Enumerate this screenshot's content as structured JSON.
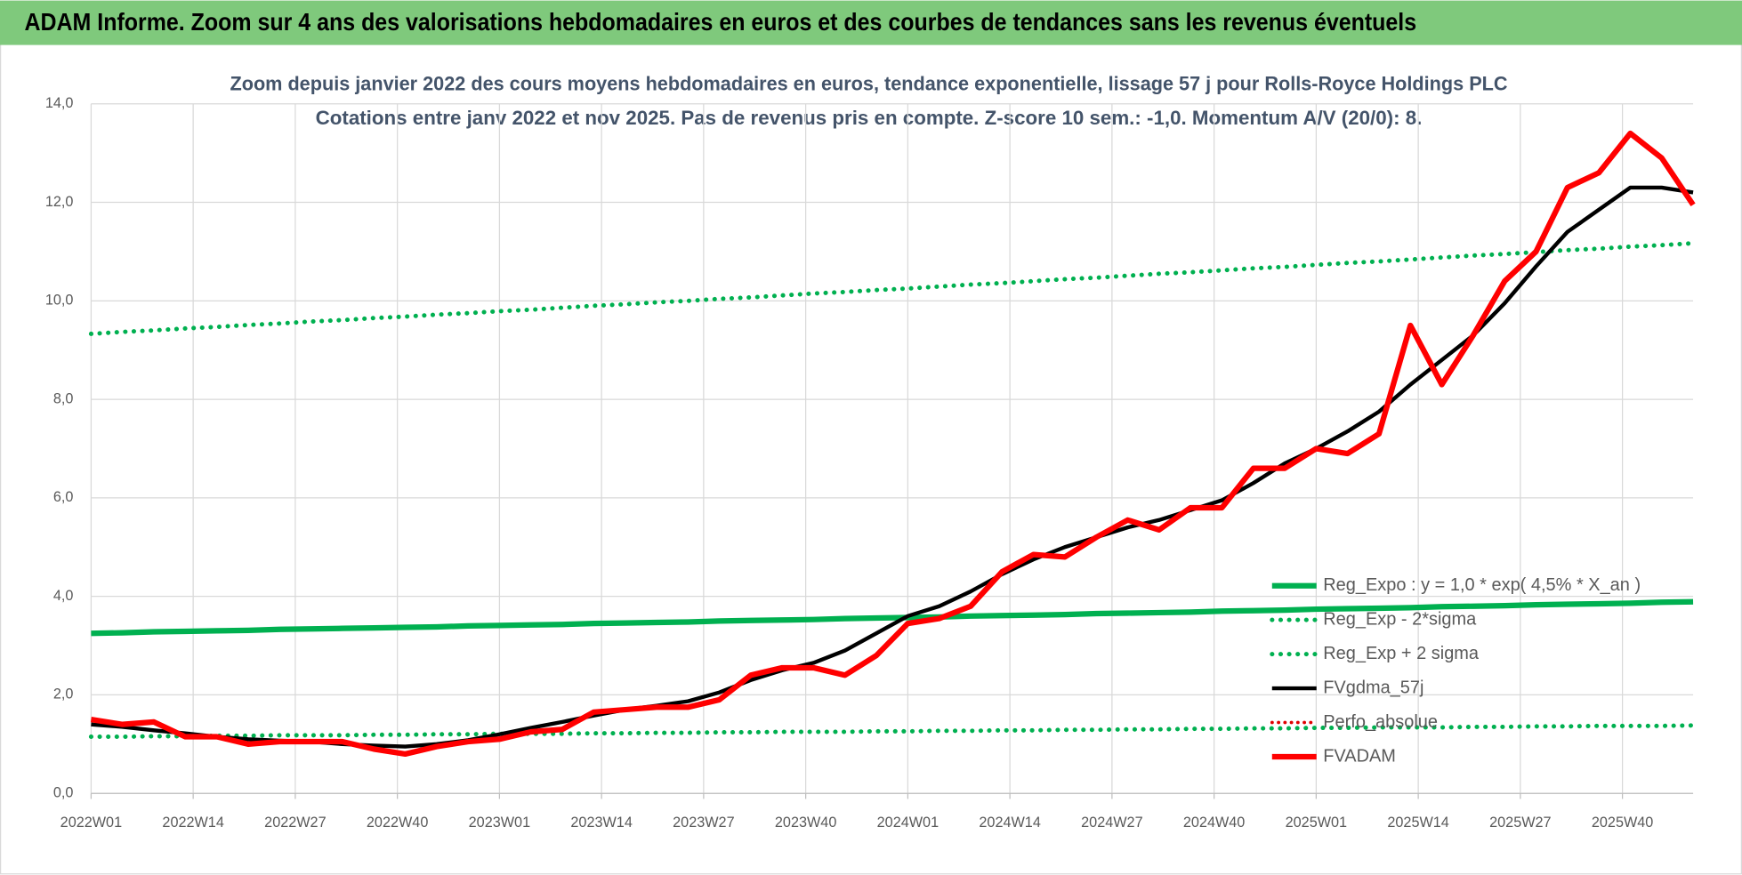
{
  "header": {
    "title": "ADAM Informe. Zoom sur 4 ans des valorisations hebdomadaires en euros et des courbes de tendances sans les revenus éventuels"
  },
  "chart_data": {
    "type": "line",
    "title": "Zoom depuis janvier 2022 des cours moyens hebdomadaires en euros, tendance exponentielle, lissage 57 j pour Rolls-Royce Holdings PLC",
    "subtitle": "Cotations entre janv 2022 et nov 2025. Pas de revenus pris en compte. Z-score 10 sem.: -1,0. Momentum A/V (20/0): 8.",
    "x": [
      0,
      4,
      8,
      12,
      16,
      20,
      24,
      28,
      32,
      36,
      40,
      44,
      48,
      52,
      56,
      60,
      64,
      68,
      72,
      76,
      80,
      84,
      88,
      92,
      96,
      100,
      104,
      108,
      112,
      116,
      120,
      124,
      128,
      132,
      136,
      140,
      144,
      148,
      152,
      156,
      160,
      164,
      168,
      172,
      176,
      180,
      184,
      188,
      192,
      196,
      200,
      204
    ],
    "xlim": [
      0,
      204
    ],
    "xticks": [
      {
        "value": 0,
        "label": "2022W01"
      },
      {
        "value": 13,
        "label": "2022W14"
      },
      {
        "value": 26,
        "label": "2022W27"
      },
      {
        "value": 39,
        "label": "2022W40"
      },
      {
        "value": 52,
        "label": "2023W01"
      },
      {
        "value": 65,
        "label": "2023W14"
      },
      {
        "value": 78,
        "label": "2023W27"
      },
      {
        "value": 91,
        "label": "2023W40"
      },
      {
        "value": 104,
        "label": "2024W01"
      },
      {
        "value": 117,
        "label": "2024W14"
      },
      {
        "value": 130,
        "label": "2024W27"
      },
      {
        "value": 143,
        "label": "2024W40"
      },
      {
        "value": 156,
        "label": "2025W01"
      },
      {
        "value": 169,
        "label": "2025W14"
      },
      {
        "value": 182,
        "label": "2025W27"
      },
      {
        "value": 195,
        "label": "2025W40"
      }
    ],
    "ylim": [
      0,
      14
    ],
    "yticks": [
      {
        "value": 0,
        "label": "0,0"
      },
      {
        "value": 2,
        "label": "2,0"
      },
      {
        "value": 4,
        "label": "4,0"
      },
      {
        "value": 6,
        "label": "6,0"
      },
      {
        "value": 8,
        "label": "8,0"
      },
      {
        "value": 10,
        "label": "10,0"
      },
      {
        "value": 12,
        "label": "12,0"
      },
      {
        "value": 14,
        "label": "14,0"
      }
    ],
    "grid": true,
    "series": [
      {
        "name": "Reg_Expo : y = 1,0 * exp( 4,5% *  X_an )",
        "color": "#00b050",
        "style": "solid",
        "width": 5,
        "values": [
          3.25,
          3.26,
          3.28,
          3.29,
          3.3,
          3.31,
          3.33,
          3.34,
          3.35,
          3.36,
          3.37,
          3.38,
          3.4,
          3.41,
          3.42,
          3.43,
          3.45,
          3.46,
          3.47,
          3.48,
          3.5,
          3.51,
          3.52,
          3.53,
          3.55,
          3.56,
          3.57,
          3.58,
          3.6,
          3.61,
          3.62,
          3.63,
          3.65,
          3.66,
          3.67,
          3.68,
          3.7,
          3.71,
          3.72,
          3.74,
          3.75,
          3.76,
          3.77,
          3.79,
          3.8,
          3.81,
          3.83,
          3.84,
          3.85,
          3.86,
          3.88,
          3.89
        ]
      },
      {
        "name": "Reg_Exp - 2*sigma",
        "color": "#00b050",
        "style": "dotted",
        "width": 4,
        "values": [
          1.15,
          1.15,
          1.16,
          1.16,
          1.17,
          1.17,
          1.18,
          1.18,
          1.18,
          1.19,
          1.19,
          1.2,
          1.2,
          1.21,
          1.21,
          1.21,
          1.22,
          1.22,
          1.23,
          1.23,
          1.24,
          1.24,
          1.25,
          1.25,
          1.25,
          1.26,
          1.26,
          1.27,
          1.27,
          1.28,
          1.28,
          1.29,
          1.29,
          1.3,
          1.3,
          1.31,
          1.31,
          1.32,
          1.32,
          1.33,
          1.33,
          1.34,
          1.34,
          1.34,
          1.35,
          1.35,
          1.36,
          1.36,
          1.37,
          1.37,
          1.37,
          1.38
        ]
      },
      {
        "name": "Reg_Exp + 2 sigma",
        "color": "#00b050",
        "style": "dotted",
        "width": 4,
        "values": [
          9.33,
          9.37,
          9.4,
          9.44,
          9.47,
          9.51,
          9.54,
          9.58,
          9.61,
          9.65,
          9.68,
          9.72,
          9.75,
          9.79,
          9.82,
          9.86,
          9.9,
          9.93,
          9.97,
          10.0,
          10.04,
          10.07,
          10.11,
          10.15,
          10.18,
          10.22,
          10.25,
          10.29,
          10.33,
          10.36,
          10.4,
          10.44,
          10.47,
          10.51,
          10.55,
          10.58,
          10.62,
          10.66,
          10.69,
          10.73,
          10.77,
          10.8,
          10.84,
          10.88,
          10.92,
          10.95,
          10.99,
          11.03,
          11.06,
          11.1,
          11.13,
          11.17
        ]
      },
      {
        "name": "FVgdma_57j",
        "color": "#000000",
        "style": "solid",
        "width": 3.5,
        "values": [
          1.4,
          1.35,
          1.28,
          1.22,
          1.15,
          1.1,
          1.07,
          1.05,
          1.0,
          0.97,
          0.95,
          1.0,
          1.08,
          1.2,
          1.33,
          1.45,
          1.58,
          1.7,
          1.78,
          1.87,
          2.05,
          2.3,
          2.5,
          2.65,
          2.9,
          3.25,
          3.6,
          3.8,
          4.1,
          4.45,
          4.75,
          5.0,
          5.2,
          5.4,
          5.55,
          5.75,
          5.95,
          6.3,
          6.7,
          7.0,
          7.35,
          7.75,
          8.3,
          8.8,
          9.3,
          9.95,
          10.7,
          11.4,
          11.85,
          12.3,
          12.3,
          12.2
        ]
      },
      {
        "name": "Perfo_absolue",
        "color": "#e00000",
        "style": "dotted",
        "width": 3,
        "values": [
          null,
          null,
          null,
          null,
          null,
          null,
          null,
          null,
          null,
          null,
          null,
          null,
          null,
          null,
          null,
          null,
          null,
          null,
          null,
          null,
          null,
          null,
          null,
          null,
          null,
          null,
          null,
          null,
          null,
          null,
          null,
          null,
          null,
          null,
          null,
          null,
          null,
          null,
          null,
          null,
          null,
          null,
          null,
          null,
          null,
          null,
          null,
          null,
          null,
          null,
          null,
          null
        ]
      },
      {
        "name": "FVADAM",
        "color": "#ff0000",
        "style": "solid",
        "width": 5,
        "values": [
          1.5,
          1.4,
          1.45,
          1.15,
          1.15,
          1.0,
          1.05,
          1.05,
          1.05,
          0.9,
          0.8,
          0.95,
          1.05,
          1.1,
          1.25,
          1.3,
          1.65,
          1.7,
          1.75,
          1.75,
          1.9,
          2.4,
          2.55,
          2.55,
          2.4,
          2.8,
          3.45,
          3.55,
          3.8,
          4.5,
          4.85,
          4.8,
          5.2,
          5.55,
          5.35,
          5.8,
          5.8,
          6.6,
          6.6,
          7.0,
          6.9,
          7.3,
          9.5,
          8.3,
          9.3,
          10.4,
          11.0,
          12.3,
          12.6,
          13.4,
          12.9,
          11.95
        ]
      }
    ]
  }
}
